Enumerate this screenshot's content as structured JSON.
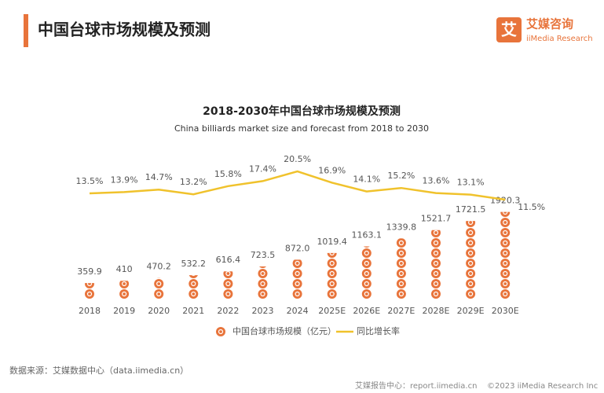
{
  "header": {
    "title": "中国台球市场规模及预测",
    "logo_mark": "艾",
    "logo_cn": "艾媒咨询",
    "logo_en": "iiMedia Research"
  },
  "chart_data": {
    "type": "bar",
    "title": "2018-2030年中国台球市场规模及预测",
    "subtitle": "China billiards market size and forecast from 2018 to 2030",
    "categories": [
      "2018",
      "2019",
      "2020",
      "2021",
      "2022",
      "2023",
      "2024",
      "2025E",
      "2026E",
      "2027E",
      "2028E",
      "2029E",
      "2030E"
    ],
    "series": [
      {
        "name": "中国台球市场规模（亿元）",
        "color": "#e8743b",
        "values": [
          359.9,
          410,
          470.2,
          532.2,
          616.4,
          723.5,
          872.0,
          1019.4,
          1163.1,
          1339.8,
          1521.7,
          1721.5,
          1920.3
        ],
        "value_labels": [
          "359.9",
          "410",
          "470.2",
          "532.2",
          "616.4",
          "723.5",
          "872.0",
          "1019.4",
          "1163.1",
          "1339.8",
          "1521.7",
          "1721.5",
          "1920.3"
        ]
      },
      {
        "name": "同比增长率",
        "type": "line",
        "color": "#f0c22c",
        "values": [
          13.5,
          13.9,
          14.7,
          13.2,
          15.8,
          17.4,
          20.5,
          16.9,
          14.1,
          15.2,
          13.6,
          13.1,
          11.5
        ],
        "value_labels": [
          "13.5%",
          "13.9%",
          "14.7%",
          "13.2%",
          "15.8%",
          "17.4%",
          "20.5%",
          "16.9%",
          "14.1%",
          "15.2%",
          "13.6%",
          "13.1%",
          "11.5%"
        ]
      }
    ]
  },
  "footer": {
    "source": "数据来源：艾媒数据中心（data.iimedia.cn）",
    "report": "艾媒报告中心：report.iimedia.cn",
    "copyright": "©2023 iiMedia Research Inc"
  }
}
